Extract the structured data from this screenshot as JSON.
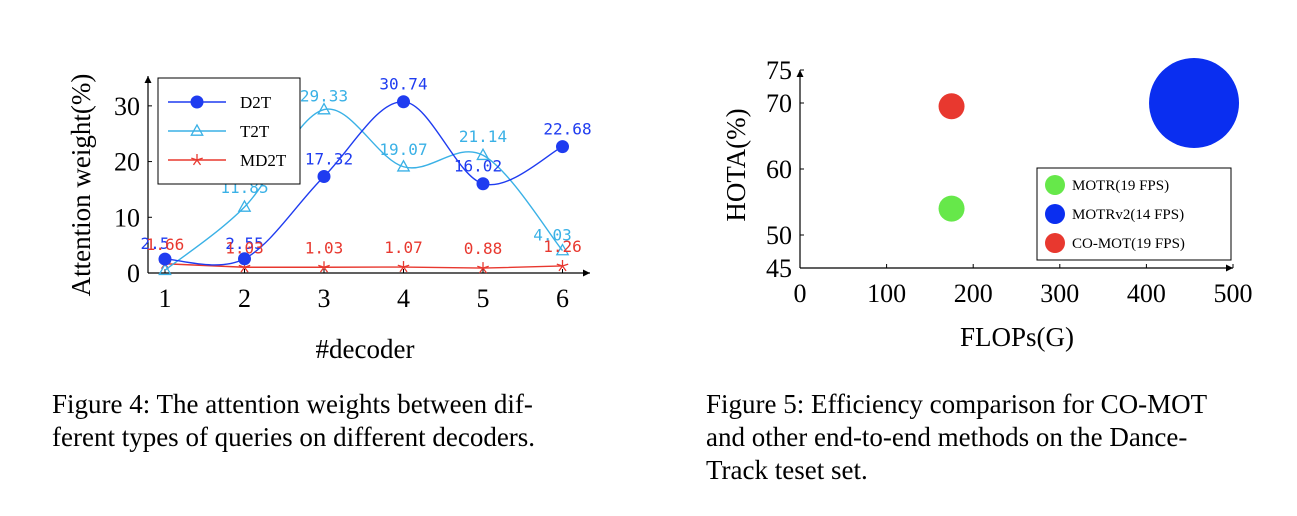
{
  "chart_data": [
    {
      "type": "line",
      "title": "",
      "xlabel": "#decoder",
      "ylabel": "Attention weight(%)",
      "x": [
        1,
        2,
        3,
        4,
        5,
        6
      ],
      "ylim": [
        0,
        35
      ],
      "xticks": [
        "1",
        "2",
        "3",
        "4",
        "5",
        "6"
      ],
      "yticks": [
        "0",
        "10",
        "20",
        "30"
      ],
      "legend_position": "top-left",
      "series": [
        {
          "name": "D2T",
          "color": "#1f3cf0",
          "marker": "circle",
          "values": [
            2.5,
            2.55,
            17.32,
            30.74,
            16.02,
            22.68
          ],
          "labels": [
            "2.5",
            "2.55",
            "17.32",
            "30.74",
            "16.02",
            "22.68"
          ]
        },
        {
          "name": "T2T",
          "color": "#3ab1e6",
          "marker": "triangle",
          "values": [
            0.5,
            11.85,
            29.33,
            19.07,
            21.14,
            4.03
          ],
          "labels": [
            "",
            "11.85",
            "29.33",
            "19.07",
            "21.14",
            "4.03"
          ]
        },
        {
          "name": "MD2T",
          "color": "#e8382f",
          "marker": "star",
          "values": [
            1.66,
            1.03,
            1.03,
            1.07,
            0.88,
            1.26
          ],
          "labels": [
            "1.66",
            "1.03",
            "1.03",
            "1.07",
            "0.88",
            "1.26"
          ]
        }
      ]
    },
    {
      "type": "scatter",
      "title": "",
      "xlabel": "FLOPs(G)",
      "ylabel": "HOTA(%)",
      "xlim": [
        0,
        500
      ],
      "ylim": [
        45,
        75
      ],
      "xticks": [
        "0",
        "100",
        "200",
        "300",
        "400",
        "500"
      ],
      "yticks": [
        "45",
        "50",
        "60",
        "70",
        "75"
      ],
      "legend_position": "bottom-right",
      "series": [
        {
          "name": "MOTR(19 FPS)",
          "color": "#66e84a",
          "x": 175,
          "y": 54,
          "size": "small"
        },
        {
          "name": "MOTRv2(14 FPS)",
          "color": "#0a2ef0",
          "x": 455,
          "y": 70,
          "size": "large"
        },
        {
          "name": "CO-MOT(19 FPS)",
          "color": "#e8382f",
          "x": 175,
          "y": 69.5,
          "size": "small"
        }
      ]
    }
  ],
  "captions": {
    "fig4_line1": "Figure 4: The attention weights between dif-",
    "fig4_line2": "ferent types of queries on different decoders.",
    "fig5_line1": "Figure 5: Efficiency comparison for CO-MOT",
    "fig5_line2": "and other end-to-end methods on the Dance-",
    "fig5_line3": "Track teset set."
  }
}
